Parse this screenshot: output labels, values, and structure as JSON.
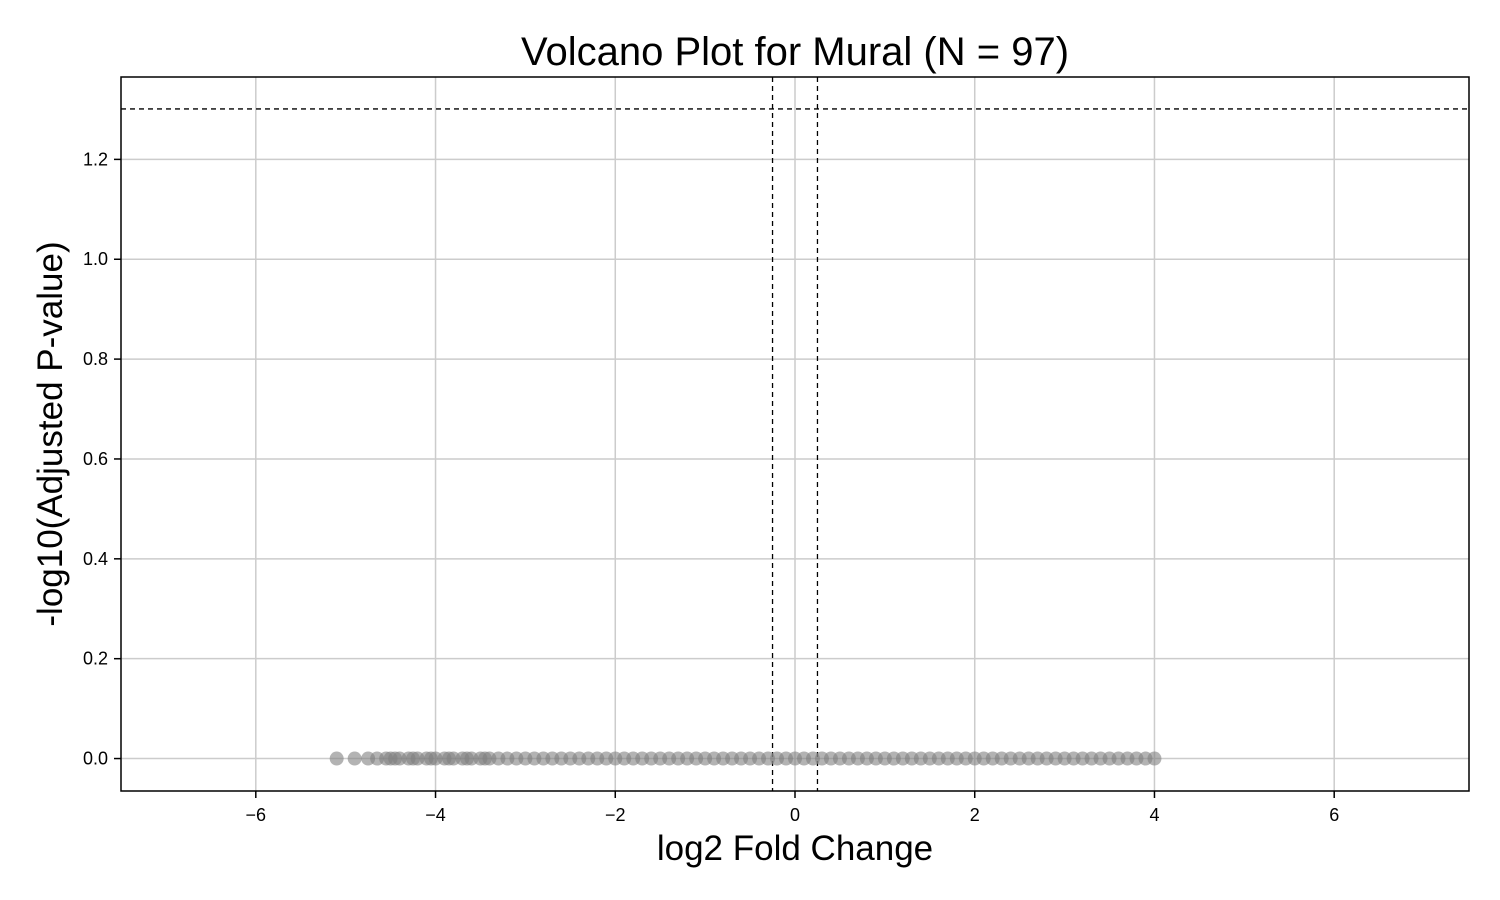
{
  "chart_data": {
    "type": "scatter",
    "title": "Volcano Plot for Mural (N = 97)",
    "xlabel": "log2 Fold Change",
    "ylabel": "-log10(Adjusted P-value)",
    "xlim": [
      -7.5,
      7.5
    ],
    "ylim": [
      -0.065,
      1.365
    ],
    "xticks": [
      -6,
      -4,
      -2,
      0,
      2,
      4,
      6
    ],
    "yticks": [
      0.0,
      0.2,
      0.4,
      0.6,
      0.8,
      1.0,
      1.2
    ],
    "xtick_labels": [
      "−6",
      "−4",
      "−2",
      "0",
      "2",
      "4",
      "6"
    ],
    "ytick_labels": [
      "0.0",
      "0.2",
      "0.4",
      "0.6",
      "0.8",
      "1.0",
      "1.2"
    ],
    "grid": true,
    "thresholds": {
      "fold_change": [
        -0.25,
        0.25
      ],
      "neg_log10_p": 1.301
    },
    "point_color": "#808080",
    "series": [
      {
        "x": [
          -5.1,
          -4.9,
          -4.75,
          -4.65,
          -4.55,
          -4.5,
          -4.45,
          -4.4,
          -4.3,
          -4.25,
          -4.2,
          -4.1,
          -4.05,
          -4.0,
          -3.9,
          -3.85,
          -3.8,
          -3.7,
          -3.65,
          -3.6,
          -3.5,
          -3.45,
          -3.4,
          -3.3,
          -3.2,
          -3.1,
          -3.0,
          -2.9,
          -2.8,
          -2.7,
          -2.6,
          -2.5,
          -2.4,
          -2.3,
          -2.2,
          -2.1,
          -2.0,
          -1.9,
          -1.8,
          -1.7,
          -1.6,
          -1.5,
          -1.4,
          -1.3,
          -1.2,
          -1.1,
          -1.0,
          -0.9,
          -0.8,
          -0.7,
          -0.6,
          -0.5,
          -0.4,
          -0.3,
          -0.2,
          -0.1,
          0.0,
          0.1,
          0.2,
          0.3,
          0.4,
          0.5,
          0.6,
          0.7,
          0.8,
          0.9,
          1.0,
          1.1,
          1.2,
          1.3,
          1.4,
          1.5,
          1.6,
          1.7,
          1.8,
          1.9,
          2.0,
          2.1,
          2.2,
          2.3,
          2.4,
          2.5,
          2.6,
          2.7,
          2.8,
          2.9,
          3.0,
          3.1,
          3.2,
          3.3,
          3.4,
          3.5,
          3.6,
          3.7,
          3.8,
          3.9,
          4.0
        ],
        "y": [
          0,
          0,
          0,
          0,
          0,
          0,
          0,
          0,
          0,
          0,
          0,
          0,
          0,
          0,
          0,
          0,
          0,
          0,
          0,
          0,
          0,
          0,
          0,
          0,
          0,
          0,
          0,
          0,
          0,
          0,
          0,
          0,
          0,
          0,
          0,
          0,
          0,
          0,
          0,
          0,
          0,
          0,
          0,
          0,
          0,
          0,
          0,
          0,
          0,
          0,
          0,
          0,
          0,
          0,
          0,
          0,
          0,
          0,
          0,
          0,
          0,
          0,
          0,
          0,
          0,
          0,
          0,
          0,
          0,
          0,
          0,
          0,
          0,
          0,
          0,
          0,
          0,
          0,
          0,
          0,
          0,
          0,
          0,
          0,
          0,
          0,
          0,
          0,
          0,
          0,
          0,
          0,
          0,
          0,
          0,
          0,
          0
        ]
      }
    ]
  }
}
